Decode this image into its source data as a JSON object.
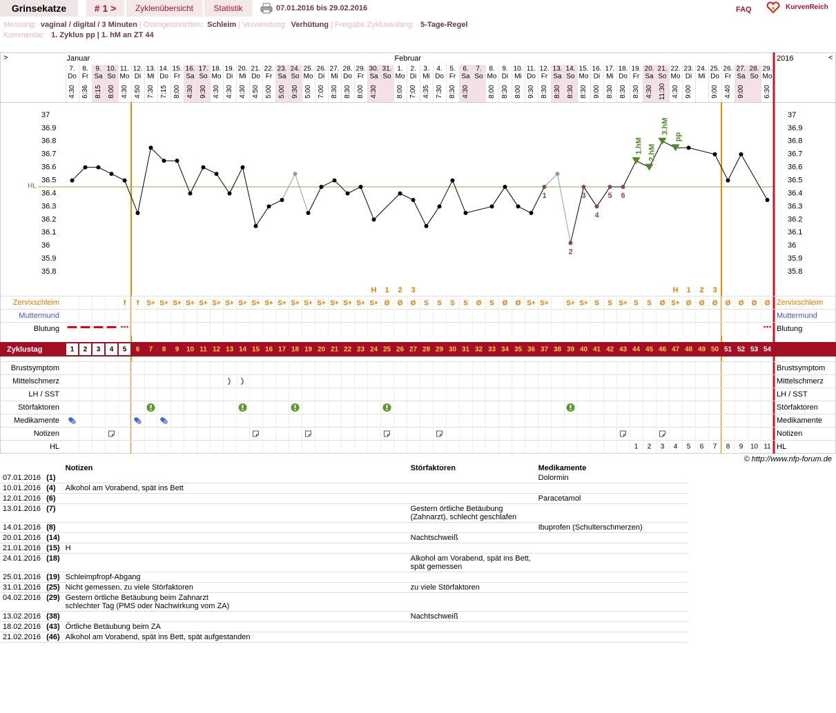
{
  "header": {
    "user": "Grinsekatze",
    "cycle": "# 1 >",
    "tab_overview": "Zyklenübersicht",
    "tab_stats": "Statistik",
    "range": "07.01.2016 bis 29.02.2016",
    "faq": "FAQ",
    "brand": "KurvenReich"
  },
  "info": {
    "measure_label": "Messung:",
    "measure": "vaginal / digital / 3 Minuten",
    "estrogen_label": "Östrogenzeichen:",
    "estrogen": "Schleim",
    "use_label": "Verwendung:",
    "use": "Verhütung",
    "release_label": "Freigabe Zyklusanfang:",
    "release": "5-Tage-Regel",
    "comment_label": "Kommentar:",
    "comment": "1. Zyklus pp | 1. hM an ZT 44"
  },
  "chart": {
    "type": "line",
    "nav_left": ">",
    "nav_right": "<",
    "year": "2016",
    "months": [
      {
        "label": "Januar",
        "day": 1
      },
      {
        "label": "Februar",
        "day": 26
      }
    ],
    "dates": [
      "7.",
      "8.",
      "9.",
      "10.",
      "11.",
      "12.",
      "13.",
      "14.",
      "15.",
      "16.",
      "17.",
      "18.",
      "19.",
      "20.",
      "21.",
      "22.",
      "23.",
      "24.",
      "25.",
      "26.",
      "27.",
      "28.",
      "29.",
      "30.",
      "31.",
      "1.",
      "2.",
      "3.",
      "4.",
      "5.",
      "6.",
      "7.",
      "8.",
      "9.",
      "10.",
      "11.",
      "12.",
      "13.",
      "14.",
      "15.",
      "16.",
      "17.",
      "18.",
      "19.",
      "20.",
      "21.",
      "22.",
      "23.",
      "24.",
      "25.",
      "26.",
      "27.",
      "28.",
      "29."
    ],
    "weekdays": [
      "Do",
      "Fr",
      "Sa",
      "So",
      "Mo",
      "Di",
      "Mi",
      "Do",
      "Fr",
      "Sa",
      "So",
      "Mo",
      "Di",
      "Mi",
      "Do",
      "Fr",
      "Sa",
      "So",
      "Mo",
      "Di",
      "Mi",
      "Do",
      "Fr",
      "Sa",
      "So",
      "Mo",
      "Di",
      "Mi",
      "Do",
      "Fr",
      "Sa",
      "So",
      "Mo",
      "Di",
      "Mi",
      "Do",
      "Fr",
      "Sa",
      "So",
      "Mo",
      "Di",
      "Mi",
      "Do",
      "Fr",
      "Sa",
      "So",
      "Mo",
      "Di",
      "Mi",
      "Do",
      "Fr",
      "Sa",
      "So",
      "Mo"
    ],
    "times": [
      "4:30",
      "6:36",
      "8:15",
      "8:00",
      "4:30",
      "4:50",
      "7:30",
      "7:15",
      "8:00",
      "4:30",
      "9:30",
      "4:30",
      "4:30",
      "4:30",
      "4:50",
      "5:00",
      "5:00",
      "9:30",
      "5:00",
      "7:00",
      "8:30",
      "8:30",
      "8:00",
      "4:30",
      null,
      "8:00",
      "7:00",
      "4:35",
      "7:30",
      "8:30",
      "4:30",
      null,
      "8:00",
      "8:30",
      "8:00",
      "9:30",
      "8:30",
      "8:30",
      "8:30",
      "8:30",
      "9:00",
      "8:30",
      "8:30",
      "8:30",
      "4:30",
      "11:30",
      "4:30",
      "9:00",
      null,
      "9:00",
      "4:40",
      "9:00",
      null,
      "6:30"
    ],
    "temperatures": [
      36.5,
      36.6,
      36.6,
      36.55,
      36.5,
      36.25,
      36.75,
      36.65,
      36.65,
      36.4,
      36.6,
      36.55,
      36.4,
      36.6,
      36.15,
      36.3,
      36.35,
      36.55,
      36.25,
      36.45,
      36.5,
      36.4,
      36.45,
      36.2,
      null,
      36.4,
      36.35,
      36.15,
      36.3,
      36.5,
      36.25,
      null,
      36.3,
      36.45,
      36.3,
      36.25,
      36.45,
      36.55,
      36.02,
      36.45,
      36.3,
      36.45,
      36.45,
      36.65,
      36.6,
      36.8,
      36.75,
      36.75,
      null,
      36.7,
      36.5,
      36.7,
      null,
      36.35
    ],
    "excluded": [
      18,
      38
    ],
    "ylim": [
      35.7,
      37.1
    ],
    "yticks": [
      37,
      36.9,
      36.8,
      36.7,
      36.6,
      36.5,
      36.4,
      36.3,
      36.2,
      36.1,
      36,
      35.9,
      35.8
    ],
    "coverline": 36.45,
    "coverline_label": "HL",
    "fertile_window": [
      6,
      50
    ],
    "low_labels": [
      {
        "day": 37,
        "label": "1"
      },
      {
        "day": 39,
        "label": "2"
      },
      {
        "day": 40,
        "label": "3"
      },
      {
        "day": 41,
        "label": "4"
      },
      {
        "day": 42,
        "label": "5"
      },
      {
        "day": 43,
        "label": "6"
      }
    ],
    "high_labels": [
      {
        "day": 44,
        "label": "1.hM"
      },
      {
        "day": 45,
        "label": "2.hM"
      },
      {
        "day": 46,
        "label": "3.hM"
      },
      {
        "day": 47,
        "label": "pp"
      }
    ],
    "peak_labels": [
      {
        "day": 24,
        "label": "H"
      },
      {
        "day": 25,
        "label": "1"
      },
      {
        "day": 26,
        "label": "2"
      },
      {
        "day": 27,
        "label": "3"
      },
      {
        "day": 47,
        "label": "H"
      },
      {
        "day": 48,
        "label": "1"
      },
      {
        "day": 49,
        "label": "2"
      },
      {
        "day": 50,
        "label": "3"
      }
    ],
    "row_labels": {
      "cervix": "Zervixschleim",
      "os": "Muttermund",
      "bleeding": "Blutung",
      "cycle_day": "Zyklustag",
      "breast": "Brustsymptom",
      "pain": "Mittelschmerz",
      "lh": "LH / SST",
      "disturb": "Störfaktoren",
      "meds": "Medikamente",
      "notes": "Notizen",
      "hl": "HL"
    },
    "cervix": [
      null,
      null,
      null,
      null,
      "f",
      "f",
      "S+",
      "S+",
      "S+",
      "S+",
      "S+",
      "S+",
      "S+",
      "S+",
      "S+",
      "S+",
      "S+",
      "S+",
      "S+",
      "S+",
      "S+",
      "S+",
      "S+",
      "S+",
      "Ø",
      "Ø",
      "Ø",
      "S",
      "S",
      "S",
      "S",
      "Ø",
      "S",
      "Ø",
      "Ø",
      "S+",
      "S+",
      null,
      "S+",
      "S+",
      "S",
      "S",
      "S+",
      "S",
      "S",
      "Ø",
      "S+",
      "Ø",
      "Ø",
      "Ø",
      "Ø",
      "Ø",
      "Ø",
      "Ø"
    ],
    "bleeding_heavy": [
      1,
      2,
      3,
      4
    ],
    "bleeding_spotting": [
      5,
      54
    ],
    "cycle_days": [
      1,
      2,
      3,
      4,
      5,
      6,
      7,
      8,
      9,
      10,
      11,
      12,
      13,
      14,
      15,
      16,
      17,
      18,
      19,
      20,
      21,
      22,
      23,
      24,
      25,
      26,
      27,
      28,
      29,
      30,
      31,
      32,
      33,
      34,
      35,
      36,
      37,
      38,
      39,
      40,
      41,
      42,
      43,
      44,
      45,
      46,
      47,
      48,
      49,
      50,
      51,
      52,
      53,
      54
    ],
    "pain_days": [
      13,
      14
    ],
    "disturb_days": [
      7,
      14,
      18,
      25,
      39
    ],
    "meds_days": [
      1,
      6,
      8
    ],
    "notes_days": [
      4,
      15,
      19,
      25,
      29,
      43,
      46
    ],
    "hl_row": [
      {
        "day": 44,
        "value": 1
      },
      {
        "day": 45,
        "value": 2
      },
      {
        "day": 46,
        "value": 3
      },
      {
        "day": 47,
        "value": 4
      },
      {
        "day": 48,
        "value": 5
      },
      {
        "day": 49,
        "value": 6
      },
      {
        "day": 50,
        "value": 7
      },
      {
        "day": 51,
        "value": 8
      },
      {
        "day": 52,
        "value": 9
      },
      {
        "day": 53,
        "value": 10
      },
      {
        "day": 54,
        "value": 11
      }
    ],
    "copyright": "© http://www.nfp-forum.de"
  },
  "table": {
    "headers": [
      "Notizen",
      "Störfaktoren",
      "Medikamente"
    ],
    "rows": [
      [
        "07.01.2016",
        "(1)",
        null,
        null,
        "Dolormin"
      ],
      [
        "10.01.2016",
        "(4)",
        "Alkohol am Vorabend, spät ins Bett",
        null,
        null
      ],
      [
        "12.01.2016",
        "(6)",
        null,
        null,
        "Paracetamol"
      ],
      [
        "13.01.2016",
        "(7)",
        null,
        "Gestern örtliche Betäubung (Zahnarzt), schlecht geschlafen",
        null
      ],
      [
        "14.01.2016",
        "(8)",
        null,
        null,
        "Ibuprofen (Schulterschmerzen)"
      ],
      [
        "20.01.2016",
        "(14)",
        null,
        "Nachtschweiß",
        null
      ],
      [
        "21.01.2016",
        "(15)",
        "H",
        null,
        null
      ],
      [
        "24.01.2016",
        "(18)",
        null,
        "Alkohol am Vorabend, spät ins Bett, spät gemessen",
        null
      ],
      [
        "25.01.2016",
        "(19)",
        "Schleimpfropf-Abgang",
        null,
        null
      ],
      [
        "31.01.2016",
        "(25)",
        "Nicht gemessen, zu viele Störfaktoren",
        "zu viele Störfaktoren",
        null
      ],
      [
        "04.02.2016",
        "(29)",
        "Gestern örtliche Betäubung beim Zahnarzt\nschlechter Tag (PMS oder Nachwirkung vom ZA)",
        null,
        null
      ],
      [
        "13.02.2016",
        "(38)",
        null,
        "Nachtschweiß",
        null
      ],
      [
        "18.02.2016",
        "(43)",
        "Örtliche Betäubung beim ZA",
        null,
        null
      ],
      [
        "21.02.2016",
        "(46)",
        "Alkohol am Vorabend, spät ins Bett, spät aufgestanden",
        null,
        null
      ]
    ]
  }
}
